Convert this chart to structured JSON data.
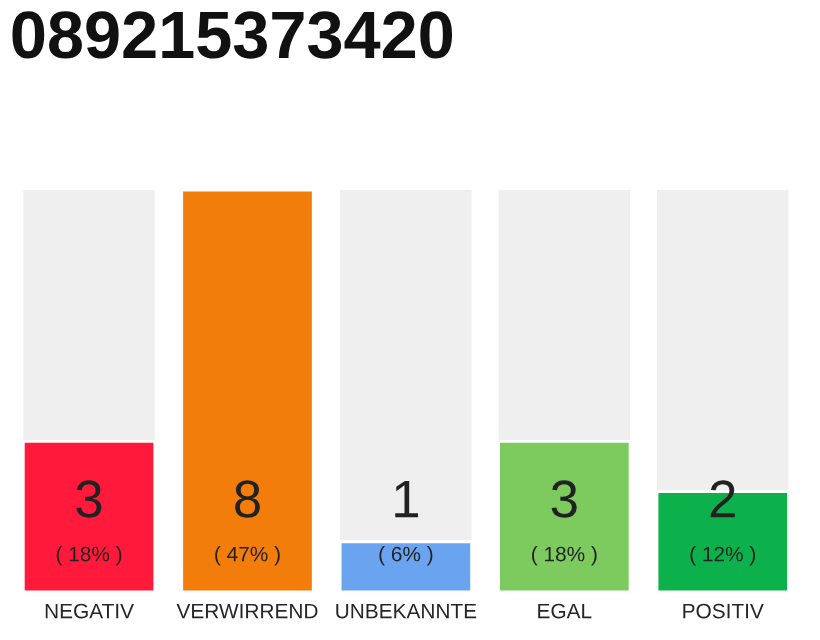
{
  "chart_data": {
    "type": "bar",
    "title": "089215373420",
    "categories": [
      "NEGATIV",
      "VERWIRREND",
      "UNBEKANNTE",
      "EGAL",
      "POSITIV"
    ],
    "values": [
      3,
      8,
      1,
      3,
      2
    ],
    "colors": [
      "#ff1a3c",
      "#f27d0a",
      "#6aa4f0",
      "#7dca5f",
      "#0db14b"
    ],
    "value_labels": [
      "3\n( 18% )",
      "8\n( 47% )",
      "1\n( 6% )",
      "3\n( 18% )",
      "2\n( 12% )"
    ],
    "grid": false,
    "legend": false
  }
}
